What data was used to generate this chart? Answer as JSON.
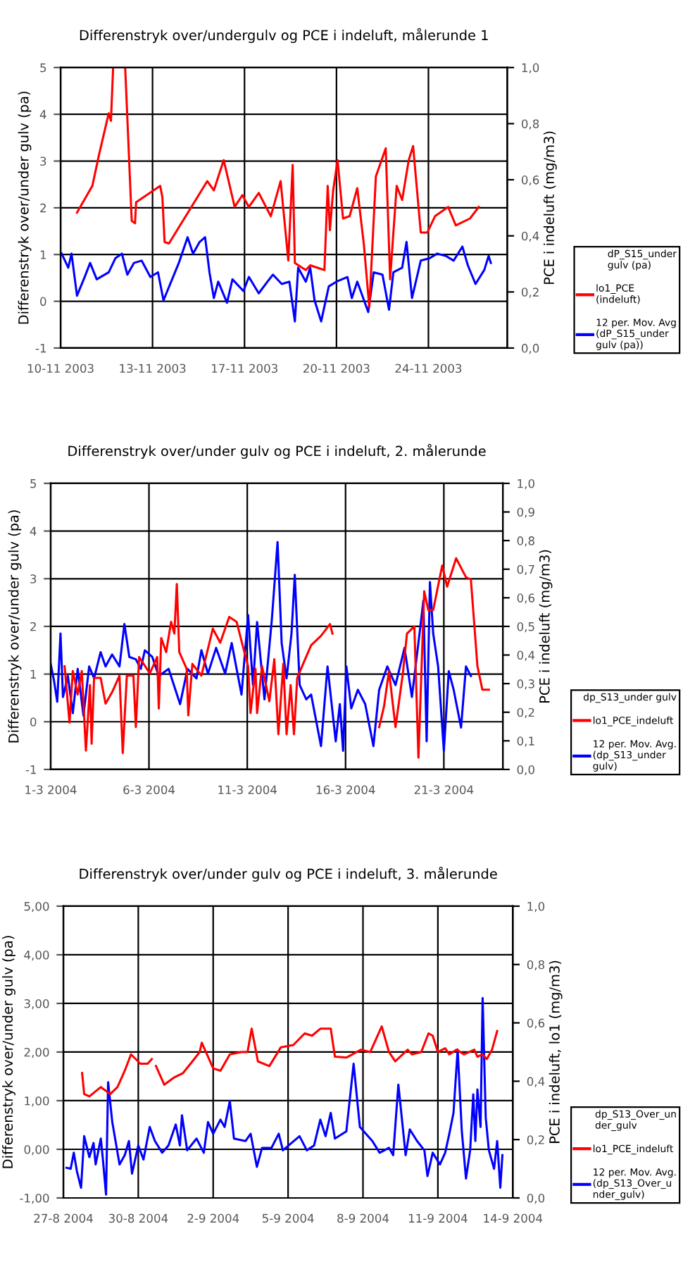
{
  "chart_data": [
    {
      "type": "line",
      "title": "Differenstryk over/undergulv og PCE i indeluft, målerunde 1",
      "ylabel": "Differenstryk over/under gulv (pa)",
      "y2label": "PCE i indeluft (mg/m3)",
      "legend_title": "dP_S15_under\ngulv (pa)",
      "grid": true,
      "legend": "right",
      "xlim": [
        "2003-11-10",
        "2003-11-27"
      ],
      "xticks": [
        {
          "value": "2003-11-10",
          "label": "10-11 2003"
        },
        {
          "value": "2003-11-13T12:00",
          "label": "13-11 2003"
        },
        {
          "value": "2003-11-17",
          "label": "17-11 2003"
        },
        {
          "value": "2003-11-20T12:00",
          "label": "20-11 2003"
        },
        {
          "value": "2003-11-24",
          "label": "24-11 2003"
        }
      ],
      "ylim": [
        -1,
        5
      ],
      "yticks": [
        -1,
        0,
        1,
        2,
        3,
        4,
        5
      ],
      "y2lim": [
        0,
        1
      ],
      "y2ticks": [
        {
          "value": 0,
          "label": "0,0"
        },
        {
          "value": 0.2,
          "label": "0,2"
        },
        {
          "value": 0.4,
          "label": "0,4"
        },
        {
          "value": 0.6,
          "label": "0,6"
        },
        {
          "value": 0.8,
          "label": "0,8"
        },
        {
          "value": 1,
          "label": "1,0"
        }
      ],
      "series": [
        {
          "name": "lo1_PCE\n(indeluft)",
          "color": "#ff0000",
          "axis": "y2",
          "x": [
            "2003-11-10T15:00",
            "2003-11-11T05:00",
            "2003-11-11T11:00",
            "2003-11-11T20:00",
            "2003-11-11T22:00",
            "2003-11-12T00:00",
            "2003-11-12T05:00",
            "2003-11-12T11:00",
            "2003-11-12T17:00",
            "2003-11-12T20:00",
            "2003-11-12T21:00",
            "2003-11-13T19:00",
            "2003-11-13T21:00",
            "2003-11-13T23:00",
            "2003-11-14T03:00",
            "2003-11-15T14:00",
            "2003-11-15T20:00",
            "2003-11-16T05:00",
            "2003-11-16T11:00",
            "2003-11-16T15:00",
            "2003-11-16T22:00",
            "2003-11-17T04:00",
            "2003-11-17T13:00",
            "2003-11-18T00:00",
            "2003-11-18T09:00",
            "2003-11-18T16:00",
            "2003-11-18T20:00",
            "2003-11-18T22:00",
            "2003-11-19T08:00",
            "2003-11-19T12:00",
            "2003-11-20T01:00",
            "2003-11-20T04:00",
            "2003-11-20T06:00",
            "2003-11-20T09:00",
            "2003-11-20T13:00",
            "2003-11-20T18:00",
            "2003-11-21T00:00",
            "2003-11-21T07:00",
            "2003-11-21T13:00",
            "2003-11-21T18:00",
            "2003-11-22T00:00",
            "2003-11-22T09:00",
            "2003-11-22T13:00",
            "2003-11-22T19:00",
            "2003-11-23T00:00",
            "2003-11-23T06:00",
            "2003-11-23T10:00",
            "2003-11-23T17:00",
            "2003-11-23T23:00",
            "2003-11-24T06:00",
            "2003-11-24T18:00",
            "2003-11-25T01:00",
            "2003-11-25T14:00",
            "2003-11-25T22:00"
          ],
          "values": [
            0.483,
            0.578,
            0.687,
            0.837,
            0.81,
            1.0,
            null,
            1.0,
            0.453,
            0.445,
            0.52,
            0.578,
            0.537,
            0.378,
            0.373,
            0.595,
            0.562,
            0.67,
            0.57,
            0.503,
            0.545,
            0.503,
            0.553,
            0.47,
            0.595,
            0.312,
            0.653,
            0.303,
            0.278,
            0.295,
            0.278,
            0.578,
            0.42,
            0.562,
            0.67,
            0.462,
            0.47,
            0.57,
            0.37,
            0.145,
            0.612,
            0.712,
            0.245,
            0.578,
            0.528,
            0.67,
            0.72,
            0.412,
            0.412,
            0.47,
            0.503,
            0.437,
            0.462,
            0.503
          ]
        },
        {
          "name": "12 per. Mov. Avg\n(dP_S15_under\ngulv (pa))",
          "color": "#0000ff",
          "x": [
            "2003-11-10T01:00",
            "2003-11-10T07:00",
            "2003-11-10T10:00",
            "2003-11-10T15:00",
            "2003-11-10T22:00",
            "2003-11-11T03:00",
            "2003-11-11T09:00",
            "2003-11-11T20:00",
            "2003-11-12T02:00",
            "2003-11-12T08:00",
            "2003-11-12T13:00",
            "2003-11-12T19:00",
            "2003-11-13T02:00",
            "2003-11-13T10:00",
            "2003-11-13T17:00",
            "2003-11-13T22:00",
            "2003-11-14T12:00",
            "2003-11-14T20:00",
            "2003-11-15T01:00",
            "2003-11-15T07:00",
            "2003-11-15T12:00",
            "2003-11-15T16:00",
            "2003-11-15T20:00",
            "2003-11-16T00:00",
            "2003-11-16T08:00",
            "2003-11-16T13:00",
            "2003-11-16T23:00",
            "2003-11-17T04:00",
            "2003-11-17T13:00",
            "2003-11-17T21:00",
            "2003-11-18T02:00",
            "2003-11-18T10:00",
            "2003-11-18T17:00",
            "2003-11-18T22:00",
            "2003-11-19T01:00",
            "2003-11-19T08:00",
            "2003-11-19T12:00",
            "2003-11-19T16:00",
            "2003-11-19T22:00",
            "2003-11-20T05:00",
            "2003-11-20T12:00",
            "2003-11-20T22:00",
            "2003-11-21T02:00",
            "2003-11-21T07:00",
            "2003-11-21T17:00",
            "2003-11-21T22:00",
            "2003-11-22T06:00",
            "2003-11-22T12:00",
            "2003-11-22T16:00",
            "2003-11-23T00:00",
            "2003-11-23T04:00",
            "2003-11-23T09:00",
            "2003-11-23T17:00",
            "2003-11-24T01:00",
            "2003-11-24T08:00",
            "2003-11-24T16:00",
            "2003-11-24T23:00",
            "2003-11-25T07:00",
            "2003-11-25T12:00",
            "2003-11-25T19:00",
            "2003-11-26T03:00",
            "2003-11-26T07:00",
            "2003-11-26T09:00"
          ],
          "values": [
            1.02,
            0.72,
            1.02,
            0.12,
            0.52,
            0.82,
            0.47,
            0.62,
            0.92,
            1.02,
            0.57,
            0.82,
            0.87,
            0.52,
            0.62,
            0.02,
            0.82,
            1.37,
            1.02,
            1.27,
            1.37,
            0.62,
            0.07,
            0.42,
            -0.03,
            0.47,
            0.22,
            0.52,
            0.17,
            0.42,
            0.57,
            0.37,
            0.42,
            -0.43,
            0.72,
            0.42,
            0.72,
            0.02,
            -0.43,
            0.32,
            0.42,
            0.52,
            0.07,
            0.42,
            -0.23,
            0.62,
            0.57,
            -0.18,
            0.62,
            0.72,
            1.27,
            0.07,
            0.87,
            0.92,
            1.02,
            0.97,
            0.87,
            1.17,
            0.77,
            0.37,
            0.67,
            0.97,
            0.82
          ]
        }
      ]
    },
    {
      "type": "line",
      "title": "Differenstryk over/under gulv og PCE i indeluft, 2. målerunde",
      "ylabel": "Differenstryk over/under gulv (pa)",
      "y2label": "PCE i indeluft (mg/m3)",
      "legend_title": "dp_S13_under gulv",
      "grid": true,
      "legend": "right",
      "xlim": [
        "2004-03-01",
        "2004-03-24"
      ],
      "xticks": [
        {
          "value": "2004-03-01",
          "label": "1-3 2004"
        },
        {
          "value": "2004-03-06",
          "label": "6-3 2004"
        },
        {
          "value": "2004-03-11",
          "label": "11-3 2004"
        },
        {
          "value": "2004-03-16",
          "label": "16-3 2004"
        },
        {
          "value": "2004-03-21",
          "label": "21-3 2004"
        }
      ],
      "ylim": [
        -1,
        5
      ],
      "yticks": [
        -1,
        0,
        1,
        2,
        3,
        4,
        5
      ],
      "y2lim": [
        0,
        1
      ],
      "y2ticks": [
        {
          "value": 0,
          "label": "0,0"
        },
        {
          "value": 0.1,
          "label": "0,1"
        },
        {
          "value": 0.2,
          "label": "0,2"
        },
        {
          "value": 0.3,
          "label": "0,3"
        },
        {
          "value": 0.4,
          "label": "0,4"
        },
        {
          "value": 0.5,
          "label": "0,5"
        },
        {
          "value": 0.6,
          "label": "0,6"
        },
        {
          "value": 0.7,
          "label": "0,7"
        },
        {
          "value": 0.8,
          "label": "0,8"
        },
        {
          "value": 0.9,
          "label": "0,9"
        },
        {
          "value": 1,
          "label": "1,0"
        }
      ],
      "series": [
        {
          "name": "lo1_PCE_indeluft",
          "color": "#ff0000",
          "axis": "y2",
          "x": [
            "2004-03-01T17:00",
            "2004-03-01T23:00",
            "2004-03-02T03:00",
            "2004-03-02T09:00",
            "2004-03-02T14:00",
            "2004-03-02T19:00",
            "2004-03-03T00:00",
            "2004-03-03T02:00",
            "2004-03-03T05:00",
            "2004-03-03T13:00",
            "2004-03-03T19:00",
            "2004-03-04T03:00",
            "2004-03-04T12:00",
            "2004-03-04T16:00",
            "2004-03-04T21:00",
            "2004-03-05T05:00",
            "2004-03-05T08:00",
            "2004-03-05T12:00",
            "2004-03-06T01:00",
            "2004-03-06T10:00",
            "2004-03-06T12:00",
            "2004-03-06T15:00",
            "2004-03-06T21:00",
            "2004-03-07T03:00",
            "2004-03-07T07:00",
            "2004-03-07T10:00",
            "2004-03-07T13:00",
            "2004-03-07T22:00",
            "2004-03-08T00:00",
            "2004-03-08T05:00",
            "2004-03-08T16:00",
            "2004-03-09T06:00",
            "2004-03-09T15:00",
            "2004-03-10T02:00",
            "2004-03-10T11:00",
            "2004-03-10T19:00",
            "2004-03-11T01:00",
            "2004-03-11T04:00",
            "2004-03-11T10:00",
            "2004-03-11T12:00",
            "2004-03-11T18:00",
            "2004-03-12T03:00",
            "2004-03-12T09:00",
            "2004-03-12T14:00",
            "2004-03-12T20:00",
            "2004-03-13T00:00",
            "2004-03-13T05:00",
            "2004-03-13T09:00",
            "2004-03-13T13:00",
            "2004-03-13T19:00",
            "2004-03-14T06:00",
            "2004-03-14T18:00",
            "2004-03-15T05:00",
            "2004-03-15T08:00",
            "2004-03-16T12:00",
            "2004-03-17T17:00",
            "2004-03-17T23:00",
            "2004-03-18T05:00",
            "2004-03-18T13:00",
            "2004-03-18T22:00",
            "2004-03-19T03:00",
            "2004-03-19T12:00",
            "2004-03-19T17:00",
            "2004-03-20T00:00",
            "2004-03-20T05:00",
            "2004-03-20T11:00",
            "2004-03-20T22:00",
            "2004-03-21T04:00",
            "2004-03-21T15:00",
            "2004-03-22T03:00",
            "2004-03-22T09:00",
            "2004-03-22T14:00",
            "2004-03-22T17:00",
            "2004-03-22T23:00",
            "2004-03-23T07:00"
          ],
          "values": [
            0.361,
            0.164,
            0.344,
            0.262,
            0.344,
            0.066,
            0.295,
            0.09,
            0.32,
            0.32,
            0.23,
            0.27,
            0.328,
            0.057,
            0.328,
            0.328,
            0.148,
            0.393,
            0.336,
            0.393,
            0.213,
            0.459,
            0.41,
            0.516,
            0.475,
            0.648,
            0.41,
            0.352,
            0.189,
            0.369,
            0.328,
            0.492,
            0.443,
            0.533,
            0.516,
            0.426,
            0.361,
            0.197,
            0.352,
            0.197,
            0.361,
            0.238,
            0.385,
            0.123,
            0.369,
            0.123,
            0.295,
            0.123,
            0.32,
            0.361,
            0.434,
            0.467,
            0.508,
            0.475,
            null,
            0.148,
            0.221,
            0.344,
            0.148,
            0.336,
            0.475,
            0.5,
            0.041,
            0.623,
            0.557,
            0.557,
            0.713,
            0.639,
            0.738,
            0.672,
            0.664,
            0.475,
            0.361,
            0.279,
            0.279
          ]
        },
        {
          "name": "12 per. Mov. Avg.\n(dp_S13_under\ngulv)",
          "color": "#0000ff",
          "x": [
            "2004-03-01T00:00",
            "2004-03-01T04:00",
            "2004-03-01T08:00",
            "2004-03-01T12:00",
            "2004-03-01T15:00",
            "2004-03-01T21:00",
            "2004-03-02T03:00",
            "2004-03-02T09:00",
            "2004-03-02T16:00",
            "2004-03-02T23:00",
            "2004-03-03T05:00",
            "2004-03-03T13:00",
            "2004-03-03T19:00",
            "2004-03-04T03:00",
            "2004-03-04T12:00",
            "2004-03-04T18:00",
            "2004-03-05T00:00",
            "2004-03-05T08:00",
            "2004-03-05T14:00",
            "2004-03-05T19:00",
            "2004-03-06T04:00",
            "2004-03-06T12:00",
            "2004-03-07T00:00",
            "2004-03-07T14:00",
            "2004-03-07T23:00",
            "2004-03-08T10:00",
            "2004-03-08T16:00",
            "2004-03-09T00:00",
            "2004-03-09T10:00",
            "2004-03-09T21:00",
            "2004-03-10T05:00",
            "2004-03-10T17:00",
            "2004-03-11T01:00",
            "2004-03-11T07:00",
            "2004-03-11T12:00",
            "2004-03-11T21:00",
            "2004-03-12T06:00",
            "2004-03-12T13:00",
            "2004-03-12T18:00",
            "2004-03-13T00:00",
            "2004-03-13T06:00",
            "2004-03-13T10:00",
            "2004-03-13T16:00",
            "2004-03-14T00:00",
            "2004-03-14T06:00",
            "2004-03-14T18:00",
            "2004-03-15T02:00",
            "2004-03-15T12:00",
            "2004-03-15T17:00",
            "2004-03-15T21:00",
            "2004-03-16T01:00",
            "2004-03-16T07:00",
            "2004-03-16T15:00",
            "2004-03-17T00:00",
            "2004-03-17T10:00",
            "2004-03-17T17:00",
            "2004-03-18T03:00",
            "2004-03-18T13:00",
            "2004-03-19T00:00",
            "2004-03-19T09:00",
            "2004-03-19T19:00",
            "2004-03-19T23:00",
            "2004-03-20T03:00",
            "2004-03-20T07:00",
            "2004-03-20T11:00",
            "2004-03-20T17:00",
            "2004-03-21T00:00",
            "2004-03-21T06:00",
            "2004-03-21T12:00",
            "2004-03-21T21:00",
            "2004-03-22T03:00",
            "2004-03-22T09:00"
          ],
          "values": [
            1.21,
            0.87,
            0.42,
            1.85,
            0.52,
            0.96,
            0.18,
            1.11,
            0.13,
            1.16,
            0.91,
            1.46,
            1.16,
            1.41,
            1.16,
            2.05,
            1.36,
            1.31,
            1.11,
            1.5,
            1.36,
            0.96,
            1.11,
            0.37,
            1.11,
            0.91,
            1.5,
            1.01,
            1.55,
            1.01,
            1.65,
            0.57,
            2.24,
            0.77,
            2.09,
            0.47,
            2.14,
            3.77,
            1.65,
            0.91,
            1.85,
            3.08,
            0.77,
            0.47,
            0.57,
            -0.51,
            1.16,
            -0.41,
            0.37,
            -0.61,
            1.16,
            0.28,
            0.67,
            0.37,
            -0.51,
            0.67,
            1.16,
            0.77,
            1.55,
            0.52,
            1.95,
            2.54,
            -0.41,
            2.93,
            1.85,
            1.16,
            -0.61,
            1.06,
            0.67,
            -0.12,
            1.16,
            0.96
          ]
        }
      ]
    },
    {
      "type": "line",
      "title": "Differenstryk over/under gulv og PCE i indeluft, 3. målerunde",
      "ylabel": "Differenstryk over/under gulv (pa)",
      "y2label": "PCE i indeluft, lo1 (mg/m3)",
      "legend_title": "dp_S13_Over_un\nder_gulv",
      "grid": true,
      "legend": "right",
      "xlim": [
        "2004-08-27",
        "2004-09-14"
      ],
      "xticks": [
        {
          "value": "2004-08-27",
          "label": "27-8 2004"
        },
        {
          "value": "2004-08-30",
          "label": "30-8 2004"
        },
        {
          "value": "2004-09-02",
          "label": "2-9 2004"
        },
        {
          "value": "2004-09-05",
          "label": "5-9 2004"
        },
        {
          "value": "2004-09-08",
          "label": "8-9 2004"
        },
        {
          "value": "2004-09-11",
          "label": "11-9 2004"
        },
        {
          "value": "2004-09-14",
          "label": "14-9 2004"
        }
      ],
      "ylim": [
        -1,
        5
      ],
      "yticks": [
        {
          "value": -1,
          "label": "-1,00"
        },
        {
          "value": 0,
          "label": "0,00"
        },
        {
          "value": 1,
          "label": "1,00"
        },
        {
          "value": 2,
          "label": "2,00"
        },
        {
          "value": 3,
          "label": "3,00"
        },
        {
          "value": 4,
          "label": "4,00"
        },
        {
          "value": 5,
          "label": "5,00"
        }
      ],
      "y2lim": [
        0,
        1
      ],
      "y2ticks": [
        {
          "value": 0,
          "label": "0,0"
        },
        {
          "value": 0.2,
          "label": "0,2"
        },
        {
          "value": 0.4,
          "label": "0,4"
        },
        {
          "value": 0.6,
          "label": "0,6"
        },
        {
          "value": 0.8,
          "label": "0,8"
        },
        {
          "value": 1,
          "label": "1,0"
        }
      ],
      "series": [
        {
          "name": "lo1_PCE_indeluft",
          "color": "#ff0000",
          "axis": "y2",
          "x": [
            "2004-08-27T18:00",
            "2004-08-27T20:00",
            "2004-08-28T01:00",
            "2004-08-28T12:00",
            "2004-08-28T21:00",
            "2004-08-29T04:00",
            "2004-08-29T11:00",
            "2004-08-29T17:00",
            "2004-08-30T02:00",
            "2004-08-30T09:00",
            "2004-08-30T13:00",
            "2004-08-30T15:00",
            "2004-08-30T17:00",
            "2004-08-31T01:00",
            "2004-08-31T10:00",
            "2004-08-31T19:00",
            "2004-09-01T04:00",
            "2004-09-01T11:00",
            "2004-09-01T13:00",
            "2004-09-01T17:00",
            "2004-09-02T00:00",
            "2004-09-02T07:00",
            "2004-09-02T16:00",
            "2004-09-03T03:00",
            "2004-09-03T09:00",
            "2004-09-03T13:00",
            "2004-09-03T19:00",
            "2004-09-04T06:00",
            "2004-09-04T17:00",
            "2004-09-05T05:00",
            "2004-09-05T16:00",
            "2004-09-05T23:00",
            "2004-09-06T07:00",
            "2004-09-06T17:00",
            "2004-09-06T21:00",
            "2004-09-07T08:00",
            "2004-09-07T22:00",
            "2004-09-08T07:00",
            "2004-09-08T18:00",
            "2004-09-09T01:00",
            "2004-09-09T07:00",
            "2004-09-09T19:00",
            "2004-09-09T23:00",
            "2004-09-10T08:00",
            "2004-09-10T15:00",
            "2004-09-10T19:00",
            "2004-09-11T00:00",
            "2004-09-11T07:00",
            "2004-09-11T11:00",
            "2004-09-11T18:00",
            "2004-09-12T01:00",
            "2004-09-12T11:00",
            "2004-09-12T14:00",
            "2004-09-12T19:00",
            "2004-09-12T23:00",
            "2004-09-13T04:00",
            "2004-09-13T09:00"
          ],
          "values": [
            0.428,
            0.356,
            0.348,
            0.38,
            0.356,
            0.38,
            0.436,
            0.492,
            0.46,
            0.46,
            0.476,
            null,
            0.452,
            0.388,
            0.412,
            0.428,
            0.468,
            0.5,
            0.532,
            0.5,
            0.444,
            0.436,
            0.492,
            0.5,
            0.5,
            0.58,
            0.468,
            0.452,
            0.516,
            0.524,
            0.564,
            0.556,
            0.58,
            0.58,
            0.484,
            0.481,
            0.508,
            0.5,
            0.588,
            0.5,
            0.468,
            0.508,
            0.492,
            0.5,
            0.564,
            0.556,
            0.5,
            0.513,
            0.492,
            0.508,
            0.492,
            0.508,
            0.484,
            0.492,
            0.476,
            0.508,
            0.572
          ]
        },
        {
          "name": "12 per. Mov. Avg.\n(dp_S13_Over_u\nnder_gulv)",
          "color": "#0000ff",
          "x": [
            "2004-08-27T03:00",
            "2004-08-27T07:00",
            "2004-08-27T10:00",
            "2004-08-27T13:00",
            "2004-08-27T17:00",
            "2004-08-27T20:00",
            "2004-08-28T01:00",
            "2004-08-28T05:00",
            "2004-08-28T07:00",
            "2004-08-28T12:00",
            "2004-08-28T14:00",
            "2004-08-28T17:00",
            "2004-08-28T19:00",
            "2004-08-28T23:00",
            "2004-08-29T06:00",
            "2004-08-29T11:00",
            "2004-08-29T15:00",
            "2004-08-29T18:00",
            "2004-08-30T00:00",
            "2004-08-30T05:00",
            "2004-08-30T11:00",
            "2004-08-30T16:00",
            "2004-08-30T23:00",
            "2004-08-31T05:00",
            "2004-08-31T12:00",
            "2004-08-31T16:00",
            "2004-08-31T18:00",
            "2004-08-31T23:00",
            "2004-09-01T08:00",
            "2004-09-01T15:00",
            "2004-09-01T19:00",
            "2004-09-02T00:00",
            "2004-09-02T07:00",
            "2004-09-02T11:00",
            "2004-09-02T16:00",
            "2004-09-02T20:00",
            "2004-09-03T07:00",
            "2004-09-03T12:00",
            "2004-09-03T18:00",
            "2004-09-03T23:00",
            "2004-09-04T08:00",
            "2004-09-04T15:00",
            "2004-09-04T19:00",
            "2004-09-05T11:00",
            "2004-09-05T18:00",
            "2004-09-06T01:00",
            "2004-09-06T07:00",
            "2004-09-06T12:00",
            "2004-09-06T17:00",
            "2004-09-06T21:00",
            "2004-09-07T08:00",
            "2004-09-07T15:00",
            "2004-09-07T21:00",
            "2004-09-08T09:00",
            "2004-09-08T16:00",
            "2004-09-09T01:00",
            "2004-09-09T05:00",
            "2004-09-09T10:00",
            "2004-09-09T17:00",
            "2004-09-09T21:00",
            "2004-09-10T04:00",
            "2004-09-10T11:00",
            "2004-09-10T14:00",
            "2004-09-10T19:00",
            "2004-09-11T02:00",
            "2004-09-11T07:00",
            "2004-09-11T11:00",
            "2004-09-11T15:00",
            "2004-09-11T19:00",
            "2004-09-11T23:00",
            "2004-09-12T03:00",
            "2004-09-12T07:00",
            "2004-09-12T10:00",
            "2004-09-12T12:00",
            "2004-09-12T14:00",
            "2004-09-12T17:00",
            "2004-09-12T19:00",
            "2004-09-12T22:00",
            "2004-09-13T01:00",
            "2004-09-13T06:00",
            "2004-09-13T09:00",
            "2004-09-13T12:00",
            "2004-09-13T14:00"
          ],
          "values": [
            -0.38,
            -0.4,
            -0.07,
            -0.45,
            -0.79,
            0.27,
            -0.16,
            0.13,
            -0.31,
            0.22,
            -0.21,
            -0.93,
            1.38,
            0.56,
            -0.31,
            -0.12,
            0.17,
            -0.5,
            0.08,
            -0.21,
            0.46,
            0.17,
            -0.07,
            0.08,
            0.51,
            0.08,
            0.7,
            -0.02,
            0.22,
            -0.07,
            0.56,
            0.32,
            0.61,
            0.46,
            0.99,
            0.22,
            0.17,
            0.32,
            -0.36,
            0.03,
            0.03,
            0.32,
            -0.02,
            0.27,
            -0.02,
            0.08,
            0.61,
            0.27,
            0.75,
            0.22,
            0.37,
            1.76,
            0.46,
            0.17,
            -0.07,
            0.03,
            -0.12,
            1.33,
            -0.12,
            0.41,
            0.17,
            -0.02,
            -0.55,
            -0.07,
            -0.31,
            -0.07,
            0.32,
            0.75,
            2.05,
            0.37,
            -0.6,
            -0.02,
            1.13,
            0.17,
            1.23,
            0.46,
            3.11,
            0.65,
            -0.02,
            -0.4,
            0.17,
            -0.79,
            -0.12
          ]
        }
      ]
    }
  ]
}
